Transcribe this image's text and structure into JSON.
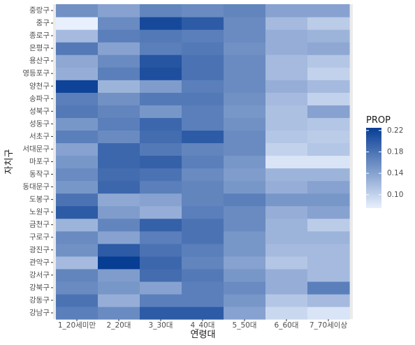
{
  "chart_data": {
    "type": "heatmap",
    "xlabel": "연령대",
    "ylabel": "자치구",
    "x_categories": [
      "1_20세미만",
      "2_20대",
      "3_30대",
      "4_40대",
      "5_50대",
      "6_60대",
      "7_70세이상"
    ],
    "y_categories": [
      "강남구",
      "강동구",
      "강북구",
      "강서구",
      "관악구",
      "광진구",
      "구로구",
      "금천구",
      "노원구",
      "도봉구",
      "동대문구",
      "동작구",
      "마포구",
      "서대문구",
      "서초구",
      "성동구",
      "성북구",
      "송파구",
      "양천구",
      "영등포구",
      "용산구",
      "은평구",
      "종로구",
      "중구",
      "중랑구"
    ],
    "values": [
      [
        0.17,
        0.16,
        0.2,
        0.2,
        0.14,
        0.095,
        0.085
      ],
      [
        0.18,
        0.13,
        0.17,
        0.17,
        0.15,
        0.11,
        0.12
      ],
      [
        0.16,
        0.15,
        0.14,
        0.17,
        0.16,
        0.13,
        0.17
      ],
      [
        0.165,
        0.145,
        0.185,
        0.175,
        0.15,
        0.13,
        0.12
      ],
      [
        0.12,
        0.225,
        0.19,
        0.165,
        0.14,
        0.11,
        0.12
      ],
      [
        0.155,
        0.2,
        0.18,
        0.17,
        0.15,
        0.12,
        0.12
      ],
      [
        0.16,
        0.14,
        0.17,
        0.18,
        0.15,
        0.125,
        0.125
      ],
      [
        0.125,
        0.165,
        0.195,
        0.18,
        0.16,
        0.125,
        0.105
      ],
      [
        0.2,
        0.145,
        0.13,
        0.17,
        0.16,
        0.13,
        0.14
      ],
      [
        0.18,
        0.135,
        0.14,
        0.165,
        0.17,
        0.15,
        0.15
      ],
      [
        0.15,
        0.19,
        0.17,
        0.165,
        0.15,
        0.13,
        0.14
      ],
      [
        0.16,
        0.185,
        0.18,
        0.16,
        0.145,
        0.125,
        0.125
      ],
      [
        0.15,
        0.19,
        0.195,
        0.17,
        0.15,
        0.085,
        0.085
      ],
      [
        0.14,
        0.19,
        0.175,
        0.165,
        0.16,
        0.1,
        0.11
      ],
      [
        0.17,
        0.16,
        0.185,
        0.2,
        0.16,
        0.11,
        0.105
      ],
      [
        0.15,
        0.17,
        0.19,
        0.17,
        0.155,
        0.115,
        0.11
      ],
      [
        0.175,
        0.165,
        0.15,
        0.17,
        0.15,
        0.115,
        0.14
      ],
      [
        0.17,
        0.155,
        0.175,
        0.175,
        0.155,
        0.12,
        0.1
      ],
      [
        0.22,
        0.125,
        0.145,
        0.17,
        0.16,
        0.13,
        0.12
      ],
      [
        0.13,
        0.17,
        0.21,
        0.18,
        0.16,
        0.12,
        0.1
      ],
      [
        0.135,
        0.16,
        0.205,
        0.18,
        0.16,
        0.12,
        0.11
      ],
      [
        0.175,
        0.14,
        0.17,
        0.175,
        0.155,
        0.13,
        0.135
      ],
      [
        0.12,
        0.17,
        0.175,
        0.17,
        0.16,
        0.13,
        0.125
      ],
      [
        0.075,
        0.16,
        0.215,
        0.2,
        0.16,
        0.12,
        0.105
      ],
      [
        0.155,
        0.14,
        0.165,
        0.16,
        0.165,
        0.14,
        0.14
      ]
    ],
    "legend": {
      "title": "PROP",
      "breaks": [
        0.1,
        0.14,
        0.18,
        0.22
      ],
      "break_labels": [
        "0.10",
        "0.14",
        "0.18",
        "0.22"
      ],
      "range": [
        0.075,
        0.225
      ],
      "position": "right"
    },
    "colors": {
      "low": "#e8f0fd",
      "high": "#083d94",
      "panel_bg": "#ebebeb"
    },
    "grid": true
  }
}
